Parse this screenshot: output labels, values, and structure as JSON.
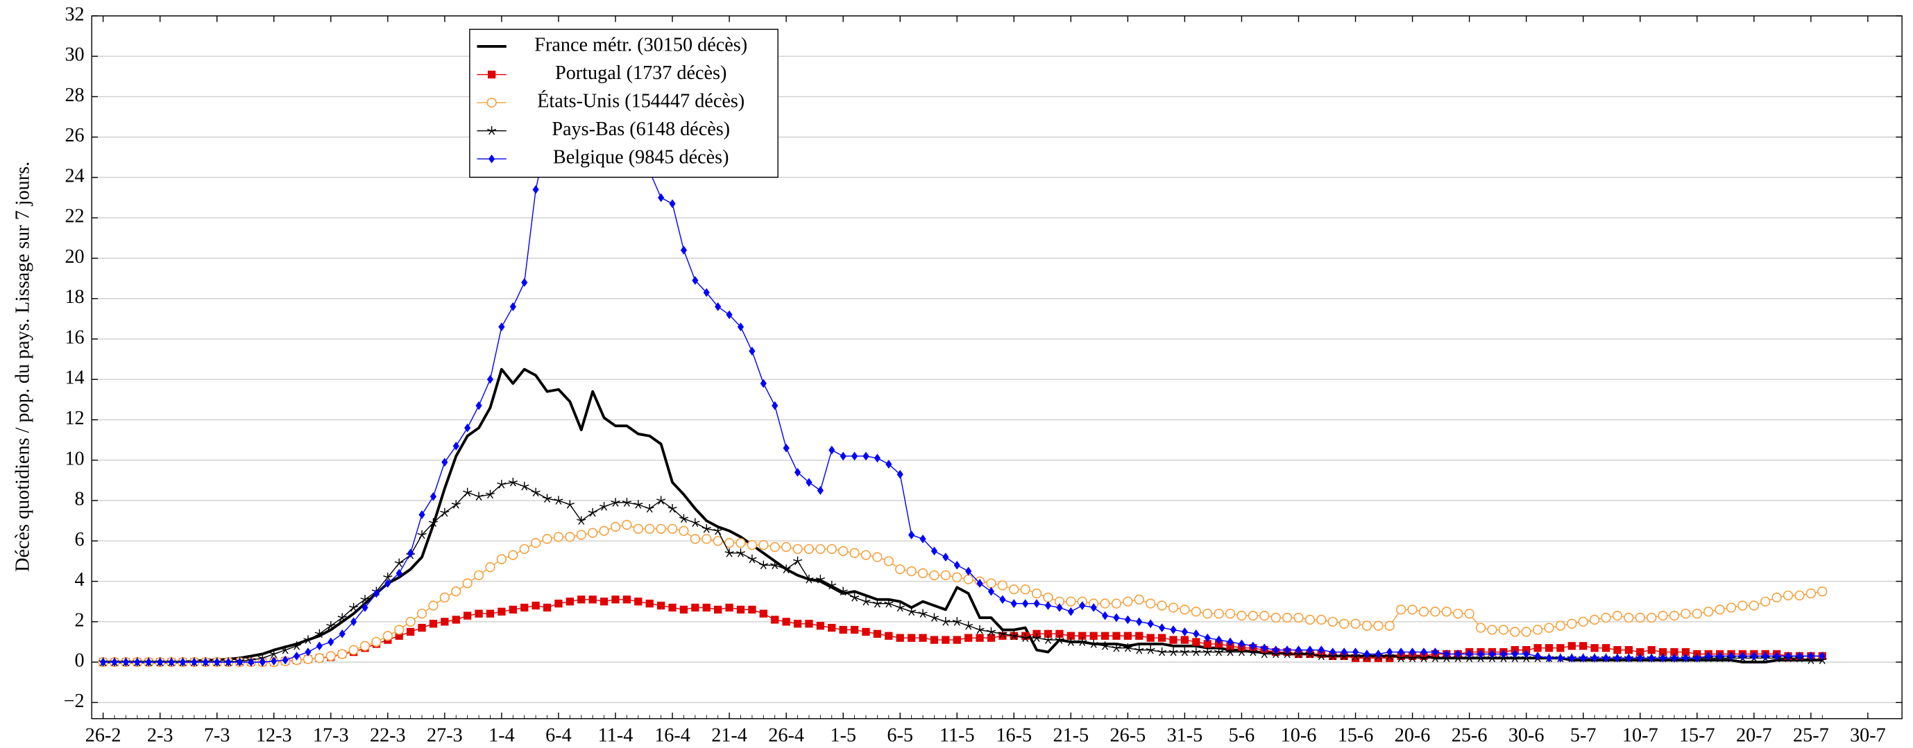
{
  "chart_data": {
    "type": "line",
    "y_label": "Décès quotidiens / pop. du pays. Lissage sur 7 jours.",
    "x": [
      "26-2",
      "27-2",
      "28-2",
      "29-2",
      "1-3",
      "2-3",
      "3-3",
      "4-3",
      "5-3",
      "6-3",
      "7-3",
      "8-3",
      "9-3",
      "10-3",
      "11-3",
      "12-3",
      "13-3",
      "14-3",
      "15-3",
      "16-3",
      "17-3",
      "18-3",
      "19-3",
      "20-3",
      "21-3",
      "22-3",
      "23-3",
      "24-3",
      "25-3",
      "26-3",
      "27-3",
      "28-3",
      "29-3",
      "30-3",
      "31-3",
      "1-4",
      "2-4",
      "3-4",
      "4-4",
      "5-4",
      "6-4",
      "7-4",
      "8-4",
      "9-4",
      "10-4",
      "11-4",
      "12-4",
      "13-4",
      "14-4",
      "15-4",
      "16-4",
      "17-4",
      "18-4",
      "19-4",
      "20-4",
      "21-4",
      "22-4",
      "23-4",
      "24-4",
      "25-4",
      "26-4",
      "27-4",
      "28-4",
      "29-4",
      "30-4",
      "1-5",
      "2-5",
      "3-5",
      "4-5",
      "5-5",
      "6-5",
      "7-5",
      "8-5",
      "9-5",
      "10-5",
      "11-5",
      "12-5",
      "13-5",
      "14-5",
      "15-5",
      "16-5",
      "17-5",
      "18-5",
      "19-5",
      "20-5",
      "21-5",
      "22-5",
      "23-5",
      "24-5",
      "25-5",
      "26-5",
      "27-5",
      "28-5",
      "29-5",
      "30-5",
      "31-5",
      "1-6",
      "2-6",
      "3-6",
      "4-6",
      "5-6",
      "6-6",
      "7-6",
      "8-6",
      "9-6",
      "10-6",
      "11-6",
      "12-6",
      "13-6",
      "14-6",
      "15-6",
      "16-6",
      "17-6",
      "18-6",
      "19-6",
      "20-6",
      "21-6",
      "22-6",
      "23-6",
      "24-6",
      "25-6",
      "26-6",
      "27-6",
      "28-6",
      "29-6",
      "30-6",
      "1-7",
      "2-7",
      "3-7",
      "4-7",
      "5-7",
      "6-7",
      "7-7",
      "8-7",
      "9-7",
      "10-7",
      "11-7",
      "12-7",
      "13-7",
      "14-7",
      "15-7",
      "16-7",
      "17-7",
      "18-7",
      "19-7",
      "20-7",
      "21-7",
      "22-7",
      "23-7",
      "24-7",
      "25-7",
      "26-7"
    ],
    "series": [
      {
        "name": "France métr. (30150 décès)",
        "color": "#000000",
        "marker": "none",
        "values": [
          0,
          0,
          0,
          0,
          0,
          0,
          0,
          0,
          0.05,
          0.1,
          0.1,
          0.15,
          0.2,
          0.3,
          0.4,
          0.6,
          0.75,
          0.9,
          1.1,
          1.3,
          1.6,
          2.0,
          2.4,
          2.9,
          3.4,
          3.9,
          4.2,
          4.6,
          5.2,
          6.8,
          8.6,
          10.2,
          11.2,
          11.6,
          12.6,
          14.5,
          13.8,
          14.5,
          14.2,
          13.4,
          13.5,
          12.9,
          11.5,
          13.4,
          12.1,
          11.7,
          11.7,
          11.3,
          11.2,
          10.8,
          8.9,
          8.3,
          7.6,
          7.0,
          6.7,
          6.5,
          6.2,
          5.8,
          5.4,
          5.0,
          4.6,
          4.3,
          4.1,
          4.0,
          3.7,
          3.4,
          3.5,
          3.3,
          3.1,
          3.1,
          3.0,
          2.7,
          3.0,
          2.8,
          2.6,
          3.7,
          3.4,
          2.2,
          2.2,
          1.6,
          1.6,
          1.7,
          0.6,
          0.5,
          1.1,
          1.0,
          1.0,
          0.9,
          0.9,
          0.9,
          0.8,
          0.9,
          0.9,
          0.9,
          0.8,
          0.8,
          0.8,
          0.7,
          0.7,
          0.6,
          0.6,
          0.5,
          0.5,
          0.5,
          0.4,
          0.4,
          0.4,
          0.3,
          0.3,
          0.3,
          0.3,
          0.3,
          0.3,
          0.3,
          0.3,
          0.3,
          0.3,
          0.2,
          0.2,
          0.2,
          0.2,
          0.2,
          0.2,
          0.2,
          0.2,
          0.2,
          0.2,
          0.2,
          0.2,
          0.1,
          0.1,
          0.1,
          0.1,
          0.1,
          0.1,
          0.1,
          0.1,
          0.1,
          0.1,
          0.1,
          0.1,
          0.1,
          0.1,
          0.1,
          0,
          0,
          0,
          0.1,
          0.1,
          0.1,
          0.1,
          0.1
        ]
      },
      {
        "name": "Portugal (1737 décès)",
        "color": "#e00000",
        "marker": "square",
        "values": [
          0,
          0,
          0,
          0,
          0,
          0,
          0,
          0,
          0,
          0,
          0,
          0,
          0,
          0,
          0,
          0,
          0.05,
          0.1,
          0.15,
          0.2,
          0.25,
          0.4,
          0.5,
          0.7,
          0.9,
          1.1,
          1.3,
          1.5,
          1.7,
          1.9,
          2.0,
          2.1,
          2.3,
          2.4,
          2.4,
          2.5,
          2.6,
          2.7,
          2.8,
          2.7,
          2.9,
          3.0,
          3.1,
          3.1,
          3.0,
          3.1,
          3.1,
          3.0,
          2.9,
          2.8,
          2.7,
          2.6,
          2.7,
          2.7,
          2.6,
          2.7,
          2.6,
          2.6,
          2.4,
          2.1,
          2.0,
          1.9,
          1.9,
          1.8,
          1.7,
          1.6,
          1.6,
          1.5,
          1.4,
          1.3,
          1.2,
          1.2,
          1.2,
          1.1,
          1.1,
          1.1,
          1.2,
          1.2,
          1.2,
          1.3,
          1.3,
          1.3,
          1.4,
          1.4,
          1.4,
          1.3,
          1.3,
          1.3,
          1.3,
          1.3,
          1.3,
          1.3,
          1.2,
          1.2,
          1.1,
          1.1,
          1.0,
          0.9,
          0.9,
          0.8,
          0.7,
          0.7,
          0.6,
          0.5,
          0.5,
          0.4,
          0.4,
          0.4,
          0.3,
          0.3,
          0.2,
          0.2,
          0.2,
          0.2,
          0.3,
          0.3,
          0.3,
          0.4,
          0.4,
          0.4,
          0.5,
          0.5,
          0.5,
          0.5,
          0.6,
          0.6,
          0.7,
          0.7,
          0.7,
          0.8,
          0.8,
          0.7,
          0.7,
          0.6,
          0.6,
          0.5,
          0.6,
          0.5,
          0.5,
          0.5,
          0.4,
          0.4,
          0.4,
          0.4,
          0.4,
          0.4,
          0.4,
          0.4,
          0.3,
          0.3,
          0.3,
          0.3
        ]
      },
      {
        "name": "États-Unis (154447 décès)",
        "color": "#f5a03c",
        "marker": "circle",
        "values": [
          0,
          0,
          0,
          0,
          0,
          0,
          0,
          0,
          0,
          0,
          0,
          0,
          0,
          0,
          0,
          0,
          0.05,
          0.1,
          0.15,
          0.2,
          0.3,
          0.4,
          0.6,
          0.8,
          1.0,
          1.3,
          1.6,
          2.0,
          2.4,
          2.8,
          3.2,
          3.5,
          3.9,
          4.3,
          4.7,
          5.1,
          5.3,
          5.6,
          5.9,
          6.1,
          6.2,
          6.2,
          6.3,
          6.4,
          6.5,
          6.7,
          6.8,
          6.6,
          6.6,
          6.6,
          6.6,
          6.5,
          6.1,
          6.1,
          6.0,
          5.9,
          5.9,
          5.8,
          5.8,
          5.7,
          5.7,
          5.6,
          5.6,
          5.6,
          5.6,
          5.5,
          5.4,
          5.3,
          5.2,
          5.0,
          4.6,
          4.5,
          4.4,
          4.3,
          4.3,
          4.2,
          4.1,
          4.0,
          3.9,
          3.8,
          3.6,
          3.6,
          3.4,
          3.2,
          3.0,
          3.0,
          3.0,
          2.9,
          2.9,
          2.9,
          3.0,
          3.1,
          2.9,
          2.8,
          2.7,
          2.6,
          2.5,
          2.4,
          2.4,
          2.4,
          2.3,
          2.3,
          2.3,
          2.2,
          2.2,
          2.2,
          2.1,
          2.1,
          2.0,
          1.9,
          1.9,
          1.8,
          1.8,
          1.8,
          2.6,
          2.6,
          2.5,
          2.5,
          2.5,
          2.4,
          2.4,
          1.7,
          1.6,
          1.6,
          1.5,
          1.5,
          1.6,
          1.7,
          1.8,
          1.9,
          2.0,
          2.1,
          2.2,
          2.3,
          2.2,
          2.2,
          2.2,
          2.3,
          2.3,
          2.4,
          2.4,
          2.5,
          2.6,
          2.7,
          2.8,
          2.8,
          3.0,
          3.2,
          3.3,
          3.3,
          3.4,
          3.5
        ]
      },
      {
        "name": "Pays-Bas (6148 décès)",
        "color": "#000000",
        "marker": "star",
        "values": [
          0,
          0,
          0,
          0,
          0,
          0,
          0,
          0,
          0,
          0,
          0,
          0,
          0.05,
          0.1,
          0.2,
          0.4,
          0.6,
          0.8,
          1.1,
          1.4,
          1.8,
          2.2,
          2.7,
          3.1,
          3.5,
          4.2,
          4.9,
          5.3,
          6.3,
          6.9,
          7.4,
          7.8,
          8.4,
          8.2,
          8.3,
          8.8,
          8.9,
          8.7,
          8.4,
          8.1,
          8.0,
          7.8,
          7.0,
          7.4,
          7.7,
          7.9,
          7.9,
          7.8,
          7.6,
          8.0,
          7.6,
          7.1,
          6.9,
          6.6,
          6.5,
          5.4,
          5.4,
          5.1,
          4.8,
          4.8,
          4.6,
          5.0,
          4.1,
          4.1,
          3.8,
          3.5,
          3.2,
          3.0,
          2.9,
          2.9,
          2.7,
          2.5,
          2.4,
          2.2,
          2.0,
          2.0,
          1.8,
          1.6,
          1.5,
          1.4,
          1.3,
          1.2,
          1.2,
          1.1,
          1.1,
          1.0,
          1.0,
          0.9,
          0.8,
          0.7,
          0.7,
          0.6,
          0.6,
          0.5,
          0.5,
          0.5,
          0.5,
          0.5,
          0.5,
          0.5,
          0.5,
          0.5,
          0.4,
          0.4,
          0.4,
          0.4,
          0.4,
          0.3,
          0.3,
          0.3,
          0.3,
          0.3,
          0.3,
          0.3,
          0.2,
          0.2,
          0.2,
          0.2,
          0.2,
          0.2,
          0.2,
          0.2,
          0.2,
          0.2,
          0.2,
          0.2,
          0.2,
          0.2,
          0.2,
          0.2,
          0.2,
          0.2,
          0.2,
          0.2,
          0.2,
          0.2,
          0.2,
          0.2,
          0.2,
          0.2,
          0.2,
          0.2,
          0.2,
          0.2,
          0.2,
          0.2,
          0.2,
          0.2,
          0.2,
          0.2,
          0.1,
          0.1
        ]
      },
      {
        "name": "Belgique (9845 décès)",
        "color": "#0000ff",
        "marker": "diamond",
        "values": [
          0,
          0,
          0,
          0,
          0,
          0,
          0,
          0,
          0,
          0,
          0,
          0,
          0,
          0,
          0,
          0.05,
          0.1,
          0.3,
          0.5,
          0.8,
          1.0,
          1.4,
          2.0,
          2.7,
          3.4,
          3.9,
          4.4,
          5.4,
          7.3,
          8.2,
          9.9,
          10.7,
          11.6,
          12.7,
          14.0,
          16.6,
          17.6,
          18.8,
          23.4,
          26.0,
          27.0,
          27.5,
          27.6,
          27.3,
          27.0,
          26.5,
          26.0,
          25.2,
          24.3,
          23.0,
          22.7,
          20.4,
          18.9,
          18.3,
          17.6,
          17.2,
          16.6,
          15.4,
          13.8,
          12.7,
          10.6,
          9.4,
          8.9,
          8.5,
          10.5,
          10.2,
          10.2,
          10.2,
          10.1,
          9.8,
          9.3,
          6.3,
          6.1,
          5.5,
          5.2,
          4.8,
          4.5,
          3.9,
          3.5,
          3.1,
          2.9,
          2.9,
          2.9,
          2.8,
          2.7,
          2.5,
          2.8,
          2.7,
          2.3,
          2.2,
          2.1,
          2.0,
          1.9,
          1.7,
          1.6,
          1.5,
          1.4,
          1.2,
          1.1,
          1.0,
          0.9,
          0.8,
          0.7,
          0.6,
          0.6,
          0.6,
          0.6,
          0.6,
          0.5,
          0.5,
          0.5,
          0.4,
          0.4,
          0.5,
          0.5,
          0.5,
          0.5,
          0.5,
          0.4,
          0.4,
          0.4,
          0.4,
          0.4,
          0.4,
          0.4,
          0.4,
          0.3,
          0.2,
          0.2,
          0.2,
          0.2,
          0.2,
          0.2,
          0.2,
          0.2,
          0.2,
          0.2,
          0.2,
          0.2,
          0.2,
          0.2,
          0.3,
          0.3,
          0.3,
          0.3,
          0.3,
          0.3,
          0.3,
          0.3,
          0.3,
          0.3,
          0.3
        ]
      }
    ],
    "xlim": [
      "25-2",
      "2-8"
    ],
    "xticks": [
      "26-2",
      "2-3",
      "7-3",
      "12-3",
      "17-3",
      "22-3",
      "27-3",
      "1-4",
      "6-4",
      "11-4",
      "16-4",
      "21-4",
      "26-4",
      "1-5",
      "6-5",
      "11-5",
      "16-5",
      "21-5",
      "26-5",
      "31-5",
      "5-6",
      "10-6",
      "15-6",
      "20-6",
      "25-6",
      "30-6",
      "5-7",
      "10-7",
      "15-7",
      "20-7",
      "25-7",
      "30-7"
    ],
    "ylim": [
      -2.8,
      32
    ],
    "yticks": [
      {
        "value": -2,
        "label": "−2"
      },
      0,
      2,
      4,
      6,
      8,
      10,
      12,
      14,
      16,
      18,
      20,
      22,
      24,
      26,
      28,
      30,
      32
    ],
    "grid": true
  }
}
